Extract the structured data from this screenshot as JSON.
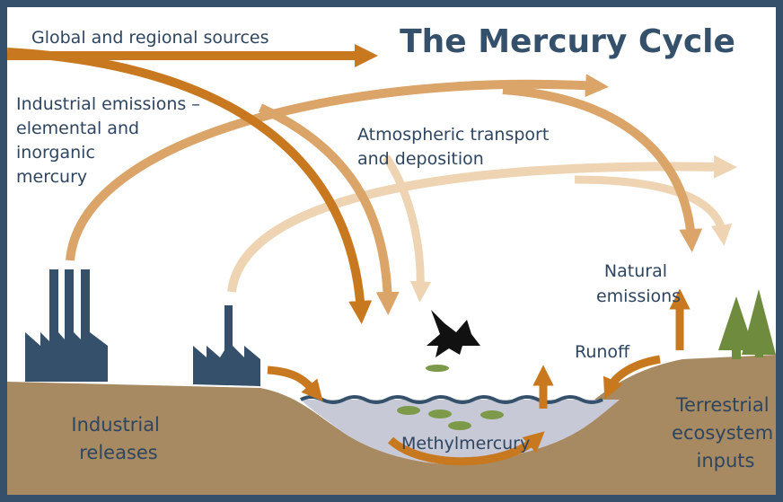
{
  "title": "The Mercury Cycle",
  "labels": {
    "global_sources": [
      "Global and regional sources"
    ],
    "industrial_emissions": [
      "Industrial emissions –",
      "elemental and",
      "inorganic",
      "mercury"
    ],
    "atmospheric": [
      "Atmospheric transport",
      "and deposition"
    ],
    "natural_emissions": [
      "Natural",
      "emissions"
    ],
    "runoff": [
      "Runoff"
    ],
    "industrial_releases": [
      "Industrial",
      "releases"
    ],
    "methylmercury": [
      "Methylmercury"
    ],
    "terrestrial": [
      "Terrestrial",
      "ecosystem",
      "inputs"
    ]
  }
}
